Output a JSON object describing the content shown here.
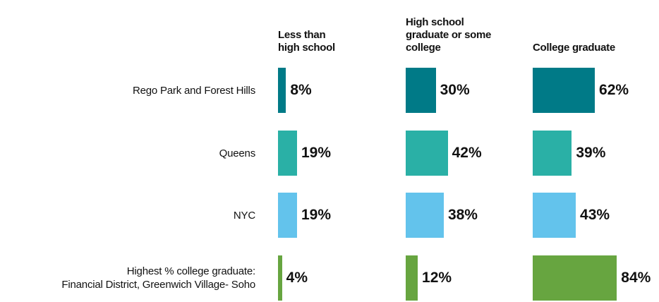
{
  "chart_data": {
    "type": "bar",
    "categories": [
      "Rego Park and Forest Hills",
      "Queens",
      "NYC",
      "Highest % college graduate:\nFinancial District, Greenwich Village- Soho"
    ],
    "colors": [
      "#007a87",
      "#2ab0a6",
      "#63c3ec",
      "#67a540"
    ],
    "series": [
      {
        "name": "Less than high school",
        "values": [
          8,
          19,
          19,
          4
        ],
        "value_labels": [
          "8%",
          "19%",
          "19%",
          "4%"
        ]
      },
      {
        "name": "High school graduate or some college",
        "values": [
          30,
          42,
          38,
          12
        ],
        "value_labels": [
          "30%",
          "42%",
          "38%",
          "12%"
        ]
      },
      {
        "name": "College graduate",
        "values": [
          62,
          39,
          43,
          84
        ],
        "value_labels": [
          "62%",
          "39%",
          "43%",
          "84%"
        ]
      }
    ]
  }
}
